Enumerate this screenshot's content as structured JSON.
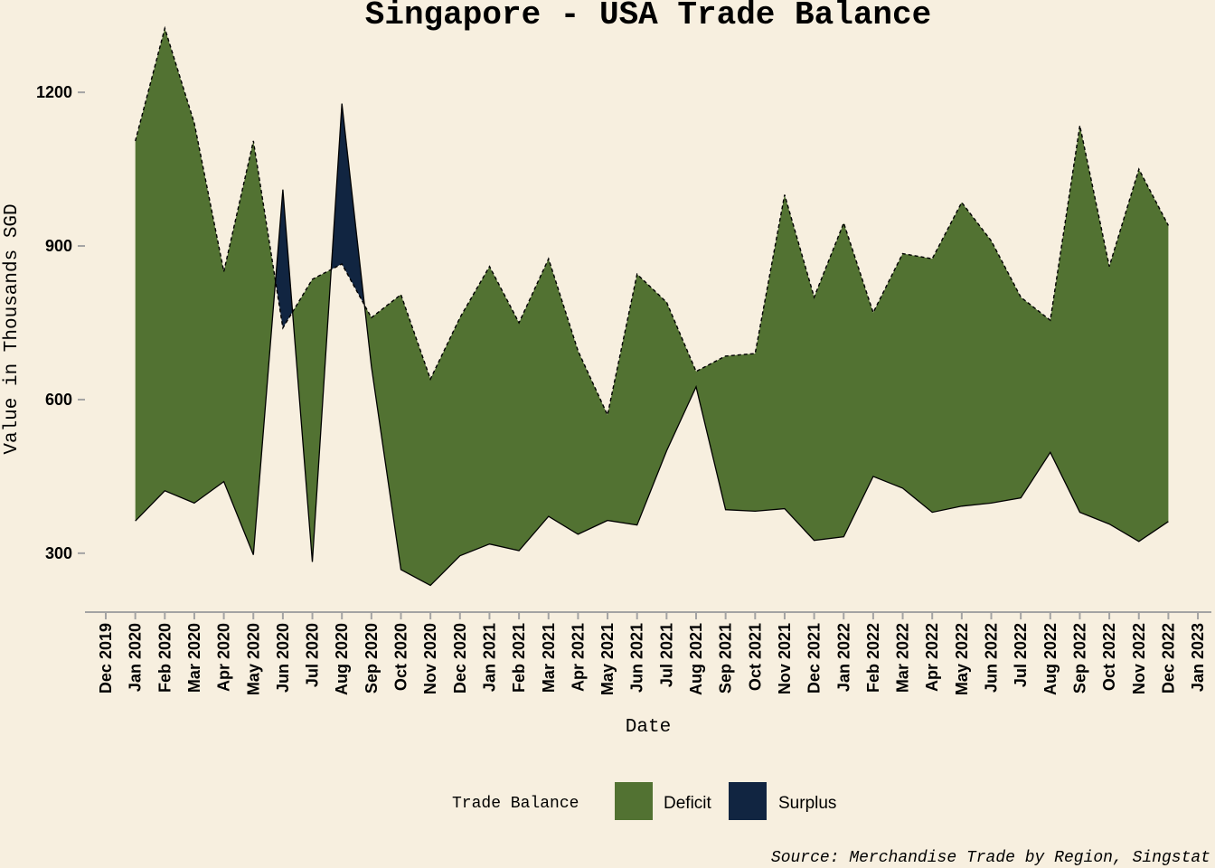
{
  "chart_data": {
    "type": "area",
    "title": "Singapore - USA Trade Balance",
    "xlabel": "Date",
    "ylabel": "Value in Thousands SGD",
    "caption": "Source: Merchandise Trade by Region, Singstat",
    "ylim": [
      185,
      1345
    ],
    "y_ticks": [
      300,
      600,
      900,
      1200
    ],
    "x_ticks": [
      "Dec 2019",
      "Jan 2020",
      "Feb 2020",
      "Mar 2020",
      "Apr 2020",
      "May 2020",
      "Jun 2020",
      "Jul 2020",
      "Aug 2020",
      "Sep 2020",
      "Oct 2020",
      "Nov 2020",
      "Dec 2020",
      "Jan 2021",
      "Feb 2021",
      "Mar 2021",
      "Apr 2021",
      "May 2021",
      "Jun 2021",
      "Jul 2021",
      "Aug 2021",
      "Sep 2021",
      "Oct 2021",
      "Nov 2021",
      "Dec 2021",
      "Jan 2022",
      "Feb 2022",
      "Mar 2022",
      "Apr 2022",
      "May 2022",
      "Jun 2022",
      "Jul 2022",
      "Aug 2022",
      "Sep 2022",
      "Oct 2022",
      "Nov 2022",
      "Dec 2022",
      "Jan 2023"
    ],
    "x": [
      "Jan 2020",
      "Feb 2020",
      "Mar 2020",
      "Apr 2020",
      "May 2020",
      "Jun 2020",
      "Jul 2020",
      "Aug 2020",
      "Sep 2020",
      "Oct 2020",
      "Nov 2020",
      "Dec 2020",
      "Jan 2021",
      "Feb 2021",
      "Mar 2021",
      "Apr 2021",
      "May 2021",
      "Jun 2021",
      "Jul 2021",
      "Aug 2021",
      "Sep 2021",
      "Oct 2021",
      "Nov 2021",
      "Dec 2021",
      "Jan 2022",
      "Feb 2022",
      "Mar 2022",
      "Apr 2022",
      "May 2022",
      "Jun 2022",
      "Jul 2022",
      "Aug 2022",
      "Sep 2022",
      "Oct 2022",
      "Nov 2022",
      "Dec 2022"
    ],
    "series": [
      {
        "role": "dashed",
        "values": [
          1105,
          1325,
          1140,
          850,
          1105,
          740,
          835,
          865,
          760,
          805,
          640,
          760,
          860,
          750,
          875,
          695,
          570,
          845,
          790,
          655,
          685,
          690,
          1000,
          800,
          945,
          770,
          885,
          875,
          985,
          910,
          800,
          755,
          1135,
          860,
          1050,
          940
        ]
      },
      {
        "role": "solid",
        "values": [
          363,
          422,
          398,
          440,
          297,
          1010,
          283,
          1178,
          665,
          268,
          237,
          295,
          318,
          305,
          372,
          337,
          364,
          355,
          500,
          625,
          385,
          382,
          387,
          325,
          332,
          450,
          427,
          380,
          392,
          398,
          408,
          497,
          380,
          357,
          323,
          362
        ]
      }
    ],
    "legend": {
      "title": "Trade Balance",
      "position": "bottom",
      "items": [
        {
          "label": "Deficit",
          "color": "#527232"
        },
        {
          "label": "Surplus",
          "color": "#112541"
        }
      ]
    },
    "grid": false,
    "background": "#f7efdf"
  }
}
